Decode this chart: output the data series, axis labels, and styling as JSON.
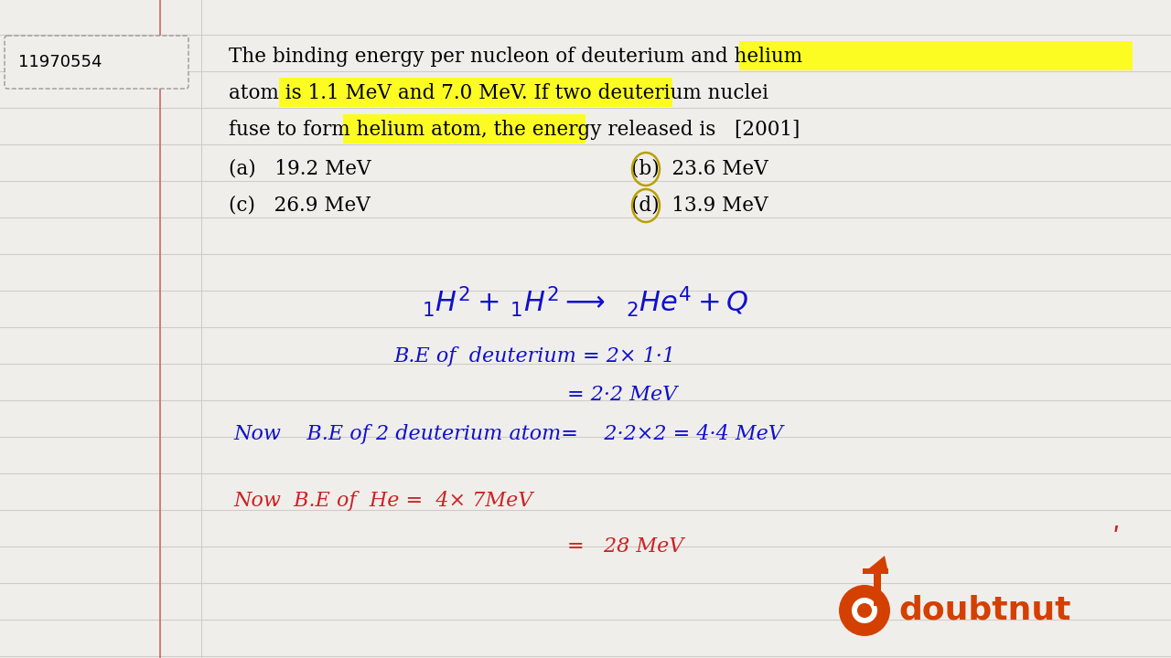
{
  "bg_color": "#f0eeeb",
  "line_color": "#d0ccc8",
  "red_line_color": "#c04040",
  "id_text": "11970554",
  "q_line0": "The binding energy per nucleon of deuterium and helium",
  "q_line1": "atom is 1.1 MeV and 7.0 MeV. If two deuterium nuclei",
  "q_line2": "fuse to form helium atom, the energy released is   [2001]",
  "opt_a": "(a)   19.2 MeV",
  "opt_b": "(b)  23.6 MeV",
  "opt_c": "(c)   26.9 MeV",
  "opt_d": "(d)  13.9 MeV",
  "blue_color": "#1010cc",
  "red_color": "#cc2222",
  "yellow": "#ffff00",
  "watermark_color": "#d44000"
}
